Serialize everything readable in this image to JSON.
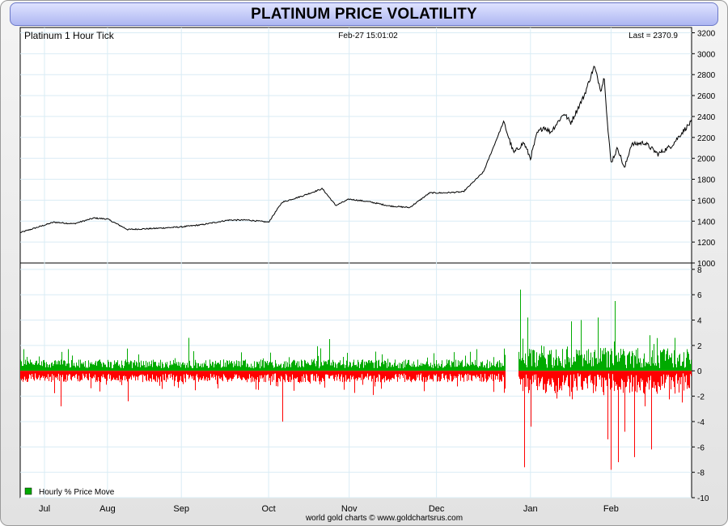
{
  "title": "PLATINUM PRICE VOLATILITY",
  "footer": "world gold charts © www.goldchartsrus.com",
  "colors": {
    "price_line": "#000000",
    "up": "#00aa00",
    "down": "#ff0000",
    "grid": "#d9ecf5",
    "title_bg": "#b8c0f4"
  },
  "chart_data": [
    {
      "type": "line",
      "header_left": "Platinum 1 Hour Tick",
      "header_center": "Feb-27  15:01:02",
      "header_right": "Last = 2370.9",
      "ylim": [
        1000,
        3250
      ],
      "yticks": [
        1000,
        1200,
        1400,
        1600,
        1800,
        2000,
        2200,
        2400,
        2600,
        2800,
        3000,
        3200
      ],
      "x_months": [
        "Jul",
        "Aug",
        "Sep",
        "Oct",
        "Nov",
        "Dec",
        "Jan",
        "Feb"
      ],
      "x_month_pos": [
        0.0,
        0.13,
        0.24,
        0.37,
        0.49,
        0.62,
        0.76,
        0.88
      ],
      "x_range": [
        0,
        1
      ],
      "x": [
        0.0,
        0.02,
        0.05,
        0.08,
        0.11,
        0.13,
        0.16,
        0.2,
        0.24,
        0.27,
        0.31,
        0.34,
        0.37,
        0.39,
        0.42,
        0.45,
        0.47,
        0.49,
        0.52,
        0.55,
        0.58,
        0.61,
        0.63,
        0.66,
        0.69,
        0.72,
        0.735,
        0.75,
        0.76,
        0.77,
        0.78,
        0.79,
        0.81,
        0.82,
        0.84,
        0.855,
        0.865,
        0.87,
        0.875,
        0.88,
        0.89,
        0.9,
        0.91,
        0.93,
        0.95,
        0.97,
        0.99,
        1.0
      ],
      "y": [
        1290,
        1330,
        1390,
        1375,
        1430,
        1420,
        1320,
        1330,
        1345,
        1365,
        1410,
        1410,
        1390,
        1580,
        1640,
        1710,
        1550,
        1610,
        1585,
        1545,
        1530,
        1670,
        1670,
        1680,
        1870,
        2350,
        2050,
        2150,
        2000,
        2240,
        2300,
        2250,
        2430,
        2340,
        2600,
        2880,
        2650,
        2780,
        2300,
        1960,
        2100,
        1900,
        2130,
        2150,
        2040,
        2120,
        2280,
        2350
      ]
    },
    {
      "type": "bar",
      "legend": "Hourly % Price Move",
      "ylim": [
        -10,
        8.5
      ],
      "yticks": [
        -10,
        -8,
        -6,
        -4,
        -2,
        0,
        2,
        4,
        6,
        8
      ],
      "annotations": [
        {
          "x": 0.06,
          "value": -2.8
        },
        {
          "x": 0.16,
          "value": -2.4
        },
        {
          "x": 0.25,
          "value": 2.6
        },
        {
          "x": 0.39,
          "value": -4.0
        },
        {
          "x": 0.46,
          "value": 2.5
        },
        {
          "x": 0.73,
          "value": -3.8
        },
        {
          "x": 0.745,
          "value": 6.4
        },
        {
          "x": 0.75,
          "value": -7.6
        },
        {
          "x": 0.755,
          "value": 4.2
        },
        {
          "x": 0.76,
          "value": -4.4
        },
        {
          "x": 0.82,
          "value": 3.9
        },
        {
          "x": 0.835,
          "value": 4.0
        },
        {
          "x": 0.86,
          "value": 4.2
        },
        {
          "x": 0.875,
          "value": -5.4
        },
        {
          "x": 0.88,
          "value": -7.8
        },
        {
          "x": 0.885,
          "value": 5.5
        },
        {
          "x": 0.89,
          "value": -7.2
        },
        {
          "x": 0.9,
          "value": -4.8
        },
        {
          "x": 0.915,
          "value": -6.8
        },
        {
          "x": 0.93,
          "value": -2.8
        },
        {
          "x": 0.94,
          "value": -6.2
        },
        {
          "x": 0.975,
          "value": 2.6
        },
        {
          "x": 0.985,
          "value": -2.5
        }
      ]
    }
  ]
}
